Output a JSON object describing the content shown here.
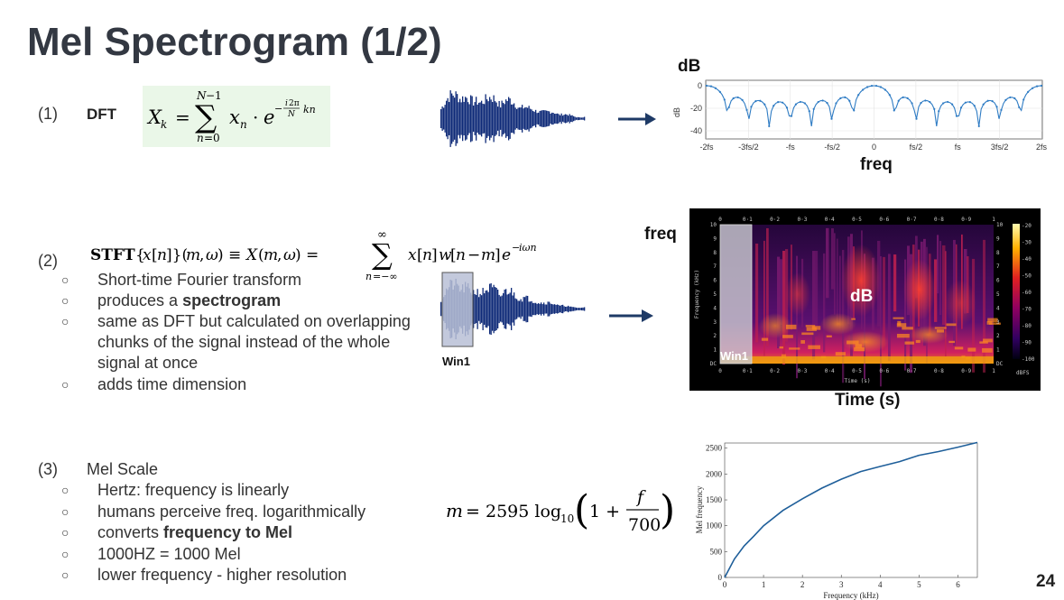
{
  "slide": {
    "title": "Mel Spectrogram (1/2)",
    "page_number": "24"
  },
  "section1": {
    "number": "(1)",
    "label": "DFT",
    "formula": "X_k = Σ_{n=0}^{N-1} x_n · e^{-i2π/N kn}"
  },
  "dft_plot": {
    "ylabel_big": "dB",
    "xlabel_big": "freq",
    "y_axis_title": "dB",
    "y_ticks": [
      "0",
      "-20",
      "-40"
    ],
    "x_ticks": [
      "-2fs",
      "-3fs/2",
      "-fs",
      "-fs/2",
      "0",
      "fs/2",
      "fs",
      "3fs/2",
      "2fs"
    ],
    "line_color": "#2f7cc4"
  },
  "section2": {
    "number": "(2)",
    "formula": "STFT{x[n]}(m,ω) ≡ X(m,ω) = Σ_{n=-∞}^{∞} x[n]w[n-m]e^{-iωn}",
    "bullets": [
      {
        "text": "Short-time Fourier transform"
      },
      {
        "prefix": "produces a ",
        "bold": "spectrogram"
      },
      {
        "text": "same as DFT but calculated on overlapping"
      },
      {
        "text": "chunks of the signal instead of the whole"
      },
      {
        "text": "signal at once"
      },
      {
        "text": "adds time dimension"
      }
    ],
    "window_label": "Win1"
  },
  "spectrogram": {
    "freq_label": "freq",
    "db_label": "dB",
    "time_label": "Time (s)",
    "window_label": "Win1",
    "y_axis_title": "Frequency (kHz)",
    "x_axis_title": "Time (s)",
    "x_ticks": [
      "0",
      "0·1",
      "0·2",
      "0·3",
      "0·4",
      "0·5",
      "0·6",
      "0·7",
      "0·8",
      "0·9",
      "1"
    ],
    "y_ticks": [
      "DC",
      "1",
      "2",
      "3",
      "4",
      "5",
      "6",
      "7",
      "8",
      "9",
      "10"
    ],
    "colorbar_ticks": [
      "-20",
      "-30",
      "-40",
      "-50",
      "-60",
      "-70",
      "-80",
      "-90",
      "-100"
    ],
    "colorbar_unit": "dBFS"
  },
  "section3": {
    "number": "(3)",
    "label": "Mel Scale",
    "formula": "m = 2595 log10(1 + f/700)",
    "bullets": [
      {
        "text": "Hertz: frequency is linearly"
      },
      {
        "text": "humans perceive freq. logarithmically"
      },
      {
        "prefix": "converts ",
        "bold": "frequency to Mel"
      },
      {
        "text": "1000HZ = 1000 Mel"
      },
      {
        "text": "lower frequency - higher resolution"
      }
    ]
  },
  "chart_data": {
    "type": "line",
    "xlabel": "Frequency (kHz)",
    "ylabel": "Mel frequency",
    "xlim": [
      0,
      6.5
    ],
    "ylim": [
      0,
      2600
    ],
    "x_ticks": [
      0,
      1,
      2,
      3,
      4,
      5,
      6
    ],
    "y_ticks": [
      0,
      500,
      1000,
      1500,
      2000,
      2500
    ],
    "series": [
      {
        "x": [
          0,
          0.25,
          0.5,
          0.75,
          1,
          1.5,
          2,
          2.5,
          3,
          3.5,
          4,
          4.5,
          5,
          5.5,
          6,
          6.5
        ],
        "values": [
          0,
          357,
          607,
          800,
          1000,
          1297,
          1521,
          1728,
          1900,
          2048,
          2146,
          2241,
          2363,
          2435,
          2520,
          2610
        ],
        "color": "#1f5f9a"
      }
    ],
    "grid": false
  }
}
